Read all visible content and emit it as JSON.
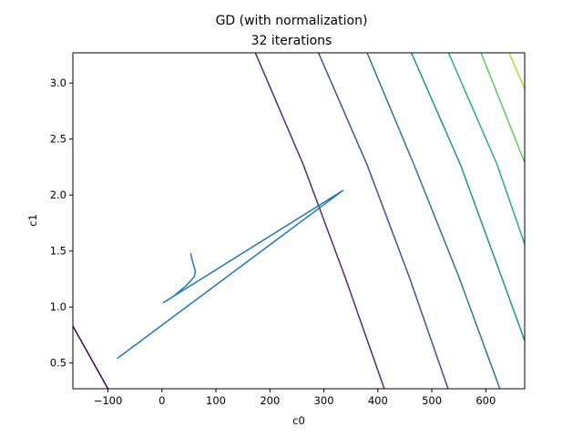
{
  "chart_data": {
    "type": "line",
    "title_line1": "GD (with normalization)",
    "title_line2": "32 iterations",
    "xlabel": "c0",
    "ylabel": "c1",
    "xlim": [
      -165,
      672
    ],
    "ylim": [
      0.27,
      3.27
    ],
    "xticks": [
      -100,
      0,
      100,
      200,
      300,
      400,
      500,
      600
    ],
    "yticks": [
      0.5,
      1.0,
      1.5,
      2.0,
      2.5,
      3.0
    ],
    "xtick_labels": [
      "−100",
      "0",
      "100",
      "200",
      "300",
      "400",
      "500",
      "600"
    ],
    "ytick_labels": [
      "0.5",
      "1.0",
      "1.5",
      "2.0",
      "2.5",
      "3.0"
    ],
    "grid": false,
    "path_color": "#1f77b4",
    "path": [
      {
        "x": 53,
        "y": 1.48
      },
      {
        "x": 57,
        "y": 1.4
      },
      {
        "x": 62,
        "y": 1.32
      },
      {
        "x": 60,
        "y": 1.27
      },
      {
        "x": 45,
        "y": 1.19
      },
      {
        "x": 20,
        "y": 1.09
      },
      {
        "x": 3,
        "y": 1.04
      },
      {
        "x": 335,
        "y": 2.04
      },
      {
        "x": -83,
        "y": 0.54
      }
    ],
    "contours": [
      {
        "color": "#440154",
        "points": [
          {
            "x": -165,
            "y": 0.83
          },
          {
            "x": -100,
            "y": 0.27
          }
        ]
      },
      {
        "color": "#472d7b",
        "points": [
          {
            "x": 173,
            "y": 3.27
          },
          {
            "x": 262,
            "y": 2.27
          },
          {
            "x": 339,
            "y": 1.27
          },
          {
            "x": 412,
            "y": 0.27
          }
        ]
      },
      {
        "color": "#3b528b",
        "points": [
          {
            "x": 290,
            "y": 3.27
          },
          {
            "x": 380,
            "y": 2.27
          },
          {
            "x": 458,
            "y": 1.27
          },
          {
            "x": 530,
            "y": 0.27
          }
        ]
      },
      {
        "color": "#2c728e",
        "points": [
          {
            "x": 380,
            "y": 3.27
          },
          {
            "x": 467,
            "y": 2.27
          },
          {
            "x": 550,
            "y": 1.27
          },
          {
            "x": 626,
            "y": 0.27
          }
        ]
      },
      {
        "color": "#21918c",
        "points": [
          {
            "x": 462,
            "y": 3.27
          },
          {
            "x": 553,
            "y": 2.27
          },
          {
            "x": 629,
            "y": 1.27
          },
          {
            "x": 672,
            "y": 0.7
          }
        ]
      },
      {
        "color": "#28ae80",
        "points": [
          {
            "x": 531,
            "y": 3.27
          },
          {
            "x": 621,
            "y": 2.27
          },
          {
            "x": 672,
            "y": 1.56
          }
        ]
      },
      {
        "color": "#5ec962",
        "points": [
          {
            "x": 591,
            "y": 3.27
          },
          {
            "x": 672,
            "y": 2.29
          }
        ]
      },
      {
        "color": "#addc30",
        "points": [
          {
            "x": 643,
            "y": 3.27
          },
          {
            "x": 672,
            "y": 2.95
          }
        ]
      }
    ]
  }
}
